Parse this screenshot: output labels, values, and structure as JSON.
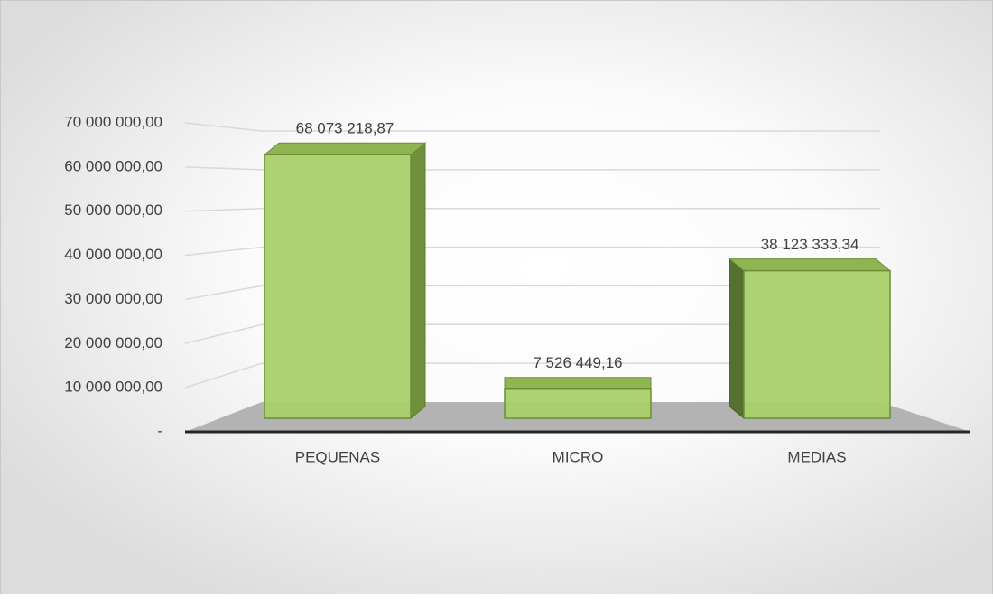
{
  "chart_data": {
    "type": "bar",
    "categories": [
      "PEQUENAS",
      "MICRO",
      "MEDIAS"
    ],
    "values": [
      68073218.87,
      7526449.16,
      38123333.34
    ],
    "value_labels": [
      "68 073 218,87",
      "7 526 449,16",
      "38 123 333,34"
    ],
    "color": "#a9d06a",
    "ylim": [
      0,
      70000000
    ],
    "yticks": [
      {
        "value": 0,
        "label": "-"
      },
      {
        "value": 10000000,
        "label": "10 000 000,00"
      },
      {
        "value": 20000000,
        "label": "20 000 000,00"
      },
      {
        "value": 30000000,
        "label": "30 000 000,00"
      },
      {
        "value": 40000000,
        "label": "40 000 000,00"
      },
      {
        "value": 50000000,
        "label": "50 000 000,00"
      },
      {
        "value": 60000000,
        "label": "60 000 000,00"
      },
      {
        "value": 70000000,
        "label": "70 000 000,00"
      }
    ],
    "grid": true
  }
}
